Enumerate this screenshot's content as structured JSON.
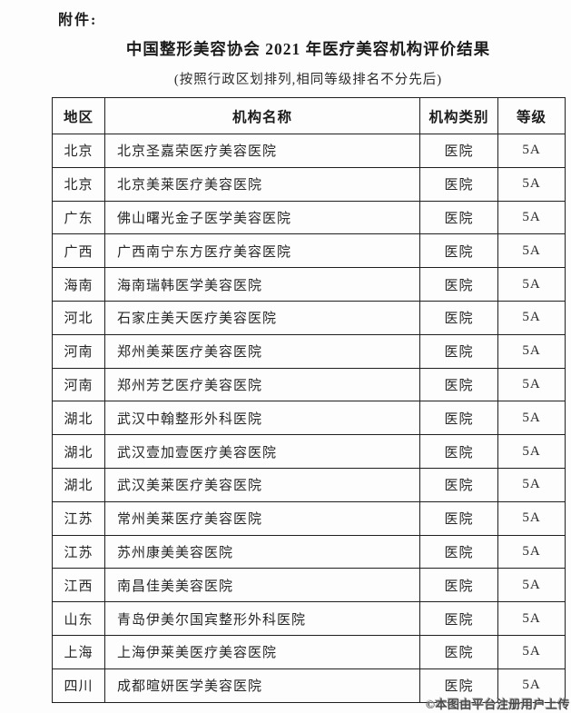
{
  "page": {
    "attachment_label": "附件:",
    "title": "中国整形美容协会 2021 年医疗美容机构评价结果",
    "subtitle": "(按照行政区划排列,相同等级排名不分先后)"
  },
  "table": {
    "headers": [
      "地区",
      "机构名称",
      "机构类别",
      "等级"
    ],
    "rows": [
      {
        "region": "北京",
        "name": "北京圣嘉荣医疗美容医院",
        "type": "医院",
        "grade": "5A"
      },
      {
        "region": "北京",
        "name": "北京美莱医疗美容医院",
        "type": "医院",
        "grade": "5A"
      },
      {
        "region": "广东",
        "name": "佛山曙光金子医学美容医院",
        "type": "医院",
        "grade": "5A"
      },
      {
        "region": "广西",
        "name": "广西南宁东方医疗美容医院",
        "type": "医院",
        "grade": "5A"
      },
      {
        "region": "海南",
        "name": "海南瑞韩医学美容医院",
        "type": "医院",
        "grade": "5A"
      },
      {
        "region": "河北",
        "name": "石家庄美天医疗美容医院",
        "type": "医院",
        "grade": "5A"
      },
      {
        "region": "河南",
        "name": "郑州美莱医疗美容医院",
        "type": "医院",
        "grade": "5A"
      },
      {
        "region": "河南",
        "name": "郑州芳艺医疗美容医院",
        "type": "医院",
        "grade": "5A"
      },
      {
        "region": "湖北",
        "name": "武汉中翰整形外科医院",
        "type": "医院",
        "grade": "5A"
      },
      {
        "region": "湖北",
        "name": "武汉壹加壹医疗美容医院",
        "type": "医院",
        "grade": "5A"
      },
      {
        "region": "湖北",
        "name": "武汉美莱医疗美容医院",
        "type": "医院",
        "grade": "5A"
      },
      {
        "region": "江苏",
        "name": "常州美莱医疗美容医院",
        "type": "医院",
        "grade": "5A"
      },
      {
        "region": "江苏",
        "name": "苏州康美美容医院",
        "type": "医院",
        "grade": "5A"
      },
      {
        "region": "江西",
        "name": "南昌佳美美容医院",
        "type": "医院",
        "grade": "5A"
      },
      {
        "region": "山东",
        "name": "青岛伊美尔国宾整形外科医院",
        "type": "医院",
        "grade": "5A"
      },
      {
        "region": "上海",
        "name": "上海伊莱美医疗美容医院",
        "type": "医院",
        "grade": "5A"
      },
      {
        "region": "四川",
        "name": "成都暄妍医学美容医院",
        "type": "医院",
        "grade": "5A"
      }
    ]
  },
  "watermark": {
    "text": "©本图由平台注册用户上传"
  },
  "colors": {
    "background": "#fdfdfd",
    "text": "#222222",
    "border": "#1f1f1f",
    "watermark_text": "#474747"
  }
}
